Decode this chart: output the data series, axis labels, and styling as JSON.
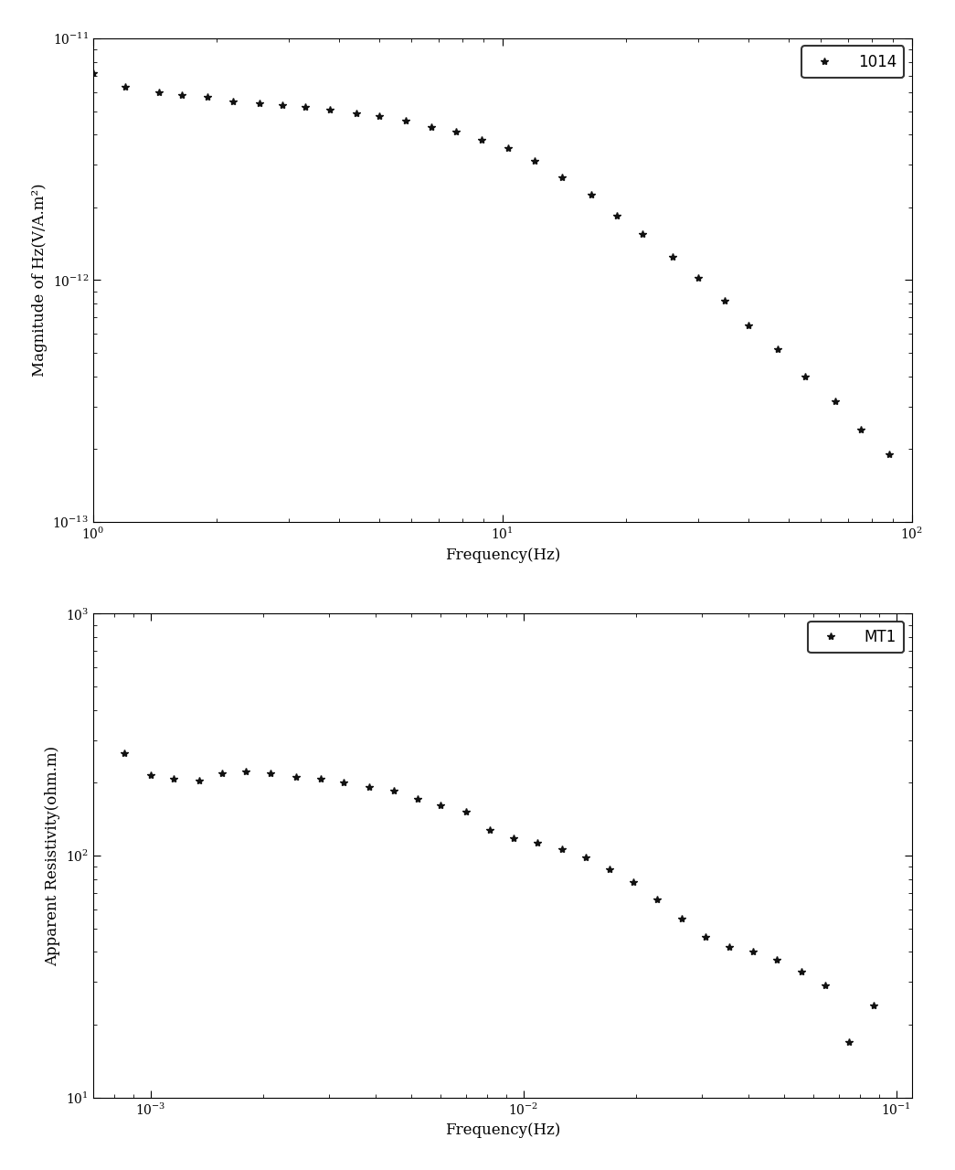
{
  "plot1": {
    "xlabel": "Frequency(Hz)",
    "ylabel": "Magnitude of Hz(V/A.m²)",
    "legend_label": "1014",
    "xlim": [
      1.0,
      100.0
    ],
    "ylim": [
      1e-13,
      1e-11
    ],
    "x": [
      1.0,
      1.2,
      1.45,
      1.65,
      1.9,
      2.2,
      2.55,
      2.9,
      3.3,
      3.8,
      4.4,
      5.0,
      5.8,
      6.7,
      7.7,
      8.9,
      10.3,
      12.0,
      14.0,
      16.5,
      19.0,
      22.0,
      26.0,
      30.0,
      35.0,
      40.0,
      47.0,
      55.0,
      65.0,
      75.0,
      88.0
    ],
    "y": [
      7.2e-12,
      6.3e-12,
      6e-12,
      5.8e-12,
      5.7e-12,
      5.5e-12,
      5.4e-12,
      5.3e-12,
      5.2e-12,
      5.05e-12,
      4.9e-12,
      4.75e-12,
      4.55e-12,
      4.3e-12,
      4.1e-12,
      3.8e-12,
      3.5e-12,
      3.1e-12,
      2.65e-12,
      2.25e-12,
      1.85e-12,
      1.55e-12,
      1.25e-12,
      1.02e-12,
      8.2e-13,
      6.5e-13,
      5.2e-13,
      4e-13,
      3.15e-13,
      2.4e-13,
      1.9e-13
    ]
  },
  "plot2": {
    "xlabel": "Frequency(Hz)",
    "ylabel": "Apparent Resistivity(ohm.m)",
    "legend_label": "MT1",
    "xlim": [
      0.0007,
      0.11
    ],
    "ylim": [
      10.0,
      1000.0
    ],
    "x": [
      0.00085,
      0.001,
      0.00115,
      0.00135,
      0.00155,
      0.0018,
      0.0021,
      0.00245,
      0.00285,
      0.0033,
      0.00385,
      0.0045,
      0.0052,
      0.006,
      0.007,
      0.0081,
      0.0094,
      0.0109,
      0.0127,
      0.0147,
      0.017,
      0.0197,
      0.0228,
      0.0265,
      0.0307,
      0.0356,
      0.0413,
      0.0479,
      0.0556,
      0.0645,
      0.0748,
      0.0868
    ],
    "y": [
      265.0,
      215.0,
      208.0,
      205.0,
      218.0,
      222.0,
      218.0,
      212.0,
      208.0,
      200.0,
      192.0,
      185.0,
      172.0,
      162.0,
      152.0,
      128.0,
      118.0,
      113.0,
      106.0,
      98.0,
      88.0,
      78.0,
      66.0,
      55.0,
      46.0,
      42.0,
      40.0,
      37.0,
      33.0,
      29.0,
      17.0,
      24.0
    ]
  },
  "marker": "*",
  "marker_size": 6,
  "color": "#111111",
  "legend_loc": "upper right",
  "background_color": "white",
  "figure_width": 10.45,
  "figure_height": 12.8,
  "dpi": 100
}
